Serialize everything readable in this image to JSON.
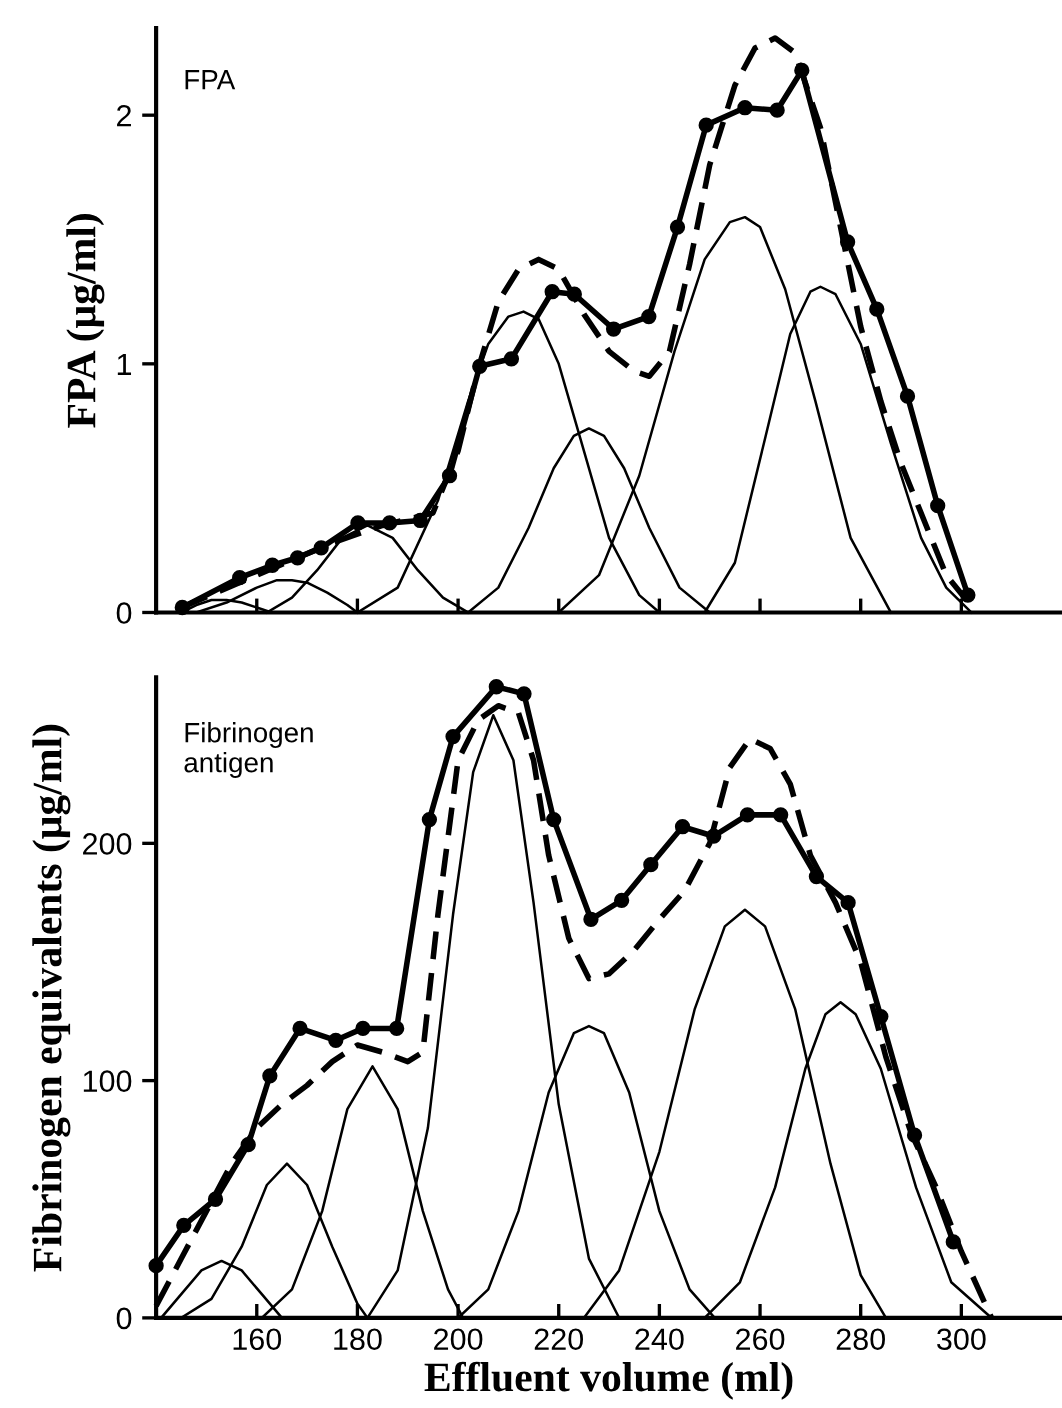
{
  "chart_data": [
    {
      "type": "line",
      "ylabel": "FPA (μg/ml)",
      "annotations": [
        "FPA"
      ],
      "xlim": [
        140,
        320
      ],
      "ylim": [
        0,
        2.35
      ],
      "xticks": [
        160,
        180,
        200,
        220,
        240,
        260,
        280,
        300
      ],
      "yticks": [
        0,
        1,
        2
      ],
      "tick_labels": "y",
      "grid": false,
      "legend": false,
      "series": [
        {
          "color": "#000000",
          "marker": "circle",
          "line_style": "solid",
          "x": [
            145.2,
            156.6,
            163.1,
            168.1,
            172.8,
            180.1,
            186.4,
            192.5,
            198.3,
            204.3,
            210.6,
            218.7,
            223.1,
            230.9,
            237.9,
            243.6,
            249.3,
            257.0,
            263.4,
            268.3,
            277.4,
            283.2,
            289.3,
            295.3,
            301.3
          ],
          "values": [
            0.02,
            0.14,
            0.19,
            0.22,
            0.26,
            0.36,
            0.36,
            0.37,
            0.55,
            0.99,
            1.02,
            1.29,
            1.28,
            1.14,
            1.19,
            1.55,
            1.96,
            2.03,
            2.02,
            2.18,
            1.49,
            1.22,
            0.87,
            0.43,
            0.07
          ]
        },
        {
          "color": "#000000",
          "marker": "none",
          "line_style": "dashed",
          "x": [
            145,
            160,
            175,
            185,
            195,
            200,
            204,
            208,
            212,
            216,
            220,
            225,
            230,
            235,
            238,
            242,
            246,
            250,
            255,
            259,
            263,
            267,
            272,
            276,
            280,
            284,
            288,
            293,
            297,
            301
          ],
          "values": [
            0.02,
            0.15,
            0.28,
            0.35,
            0.4,
            0.65,
            0.98,
            1.25,
            1.38,
            1.42,
            1.38,
            1.2,
            1.05,
            0.97,
            0.95,
            1.05,
            1.4,
            1.8,
            2.12,
            2.27,
            2.31,
            2.25,
            1.95,
            1.55,
            1.15,
            0.85,
            0.6,
            0.35,
            0.15,
            0.05
          ]
        },
        {
          "color": "#000000",
          "marker": "none",
          "line_style": "solid",
          "x": [
            145,
            148,
            151,
            154,
            157,
            160,
            163
          ],
          "values": [
            0.0,
            0.03,
            0.05,
            0.05,
            0.04,
            0.02,
            0.0
          ]
        },
        {
          "color": "#000000",
          "marker": "none",
          "line_style": "solid",
          "x": [
            148,
            154,
            160,
            164,
            167,
            170,
            174,
            178,
            180
          ],
          "values": [
            0.0,
            0.04,
            0.1,
            0.13,
            0.13,
            0.12,
            0.08,
            0.03,
            0.0
          ]
        },
        {
          "color": "#000000",
          "marker": "none",
          "line_style": "solid",
          "x": [
            162,
            167,
            172,
            177,
            182,
            187,
            192,
            197,
            202
          ],
          "values": [
            0.0,
            0.06,
            0.17,
            0.3,
            0.35,
            0.3,
            0.17,
            0.06,
            0.0
          ]
        },
        {
          "color": "#000000",
          "marker": "none",
          "line_style": "solid",
          "x": [
            180,
            188,
            196,
            202,
            206,
            210,
            213,
            216,
            220,
            224,
            230,
            236,
            240
          ],
          "values": [
            0.0,
            0.1,
            0.45,
            0.85,
            1.08,
            1.19,
            1.21,
            1.18,
            1.0,
            0.72,
            0.3,
            0.07,
            0.0
          ]
        },
        {
          "color": "#000000",
          "marker": "none",
          "line_style": "solid",
          "x": [
            202,
            208,
            214,
            219,
            223,
            226,
            229,
            233,
            238,
            244,
            250
          ],
          "values": [
            0.0,
            0.1,
            0.34,
            0.58,
            0.71,
            0.74,
            0.71,
            0.58,
            0.34,
            0.1,
            0.0
          ]
        },
        {
          "color": "#000000",
          "marker": "none",
          "line_style": "solid",
          "x": [
            220,
            228,
            236,
            243,
            249,
            254,
            257,
            260,
            265,
            271,
            278,
            286
          ],
          "values": [
            0.0,
            0.15,
            0.55,
            1.05,
            1.42,
            1.57,
            1.59,
            1.55,
            1.3,
            0.85,
            0.3,
            0.0
          ]
        },
        {
          "color": "#000000",
          "marker": "none",
          "line_style": "solid",
          "x": [
            249,
            255,
            261,
            266,
            270,
            272,
            275,
            280,
            286,
            292,
            297,
            302
          ],
          "values": [
            0.0,
            0.2,
            0.7,
            1.12,
            1.29,
            1.31,
            1.28,
            1.08,
            0.68,
            0.3,
            0.1,
            0.0
          ]
        }
      ]
    },
    {
      "type": "line",
      "xlabel": "Effluent volume (ml)",
      "ylabel": "Fibrinogen equivalents (μg/ml)",
      "annotations": [
        "Fibrinogen\nantigen"
      ],
      "xlim": [
        140,
        320
      ],
      "ylim": [
        0,
        270
      ],
      "xticks": [
        160,
        180,
        200,
        220,
        240,
        260,
        280,
        300
      ],
      "yticks": [
        0,
        100,
        200
      ],
      "grid": false,
      "legend": false,
      "series": [
        {
          "color": "#000000",
          "marker": "circle",
          "line_style": "solid",
          "x": [
            140,
            145.5,
            151.8,
            158.3,
            162.6,
            168.6,
            175.7,
            181.1,
            187.8,
            194.3,
            199.0,
            207.6,
            213.1,
            219.0,
            226.4,
            232.5,
            238.3,
            244.6,
            250.8,
            257.5,
            264.1,
            271.2,
            277.5,
            284.0,
            290.7,
            298.4
          ],
          "values": [
            22,
            39,
            50,
            73,
            102,
            122,
            117,
            122,
            122,
            210,
            245,
            266,
            263,
            210,
            168,
            176,
            191,
            207,
            203,
            212,
            212,
            186,
            175,
            127,
            77,
            32
          ]
        },
        {
          "color": "#000000",
          "marker": "none",
          "line_style": "dashed",
          "x": [
            140,
            145,
            150,
            155,
            160,
            165,
            170,
            175,
            180,
            185,
            190,
            193,
            196,
            200,
            204,
            208,
            212,
            215,
            218,
            222,
            226,
            230,
            235,
            240,
            245,
            250,
            254,
            258,
            262,
            266,
            270,
            275,
            280,
            285,
            290,
            295,
            300,
            306
          ],
          "values": [
            5,
            25,
            45,
            65,
            80,
            90,
            98,
            108,
            115,
            112,
            108,
            112,
            170,
            235,
            252,
            258,
            255,
            235,
            195,
            160,
            143,
            145,
            155,
            168,
            180,
            200,
            232,
            244,
            240,
            225,
            195,
            175,
            150,
            110,
            78,
            55,
            28,
            0
          ]
        },
        {
          "color": "#000000",
          "marker": "none",
          "line_style": "solid",
          "x": [
            141,
            145,
            149,
            153,
            157,
            161,
            165
          ],
          "values": [
            0,
            10,
            20,
            24,
            20,
            10,
            0
          ]
        },
        {
          "color": "#000000",
          "marker": "none",
          "line_style": "solid",
          "x": [
            145,
            151,
            157,
            162,
            166,
            170,
            175,
            180,
            182
          ],
          "values": [
            0,
            8,
            30,
            56,
            65,
            56,
            30,
            6,
            0
          ]
        },
        {
          "color": "#000000",
          "marker": "none",
          "line_style": "solid",
          "x": [
            161,
            167,
            173,
            178,
            183,
            188,
            193,
            198,
            201
          ],
          "values": [
            0,
            12,
            45,
            88,
            106,
            88,
            45,
            12,
            0
          ]
        },
        {
          "color": "#000000",
          "marker": "none",
          "line_style": "solid",
          "x": [
            182,
            188,
            194,
            199,
            203,
            207,
            211,
            215,
            220,
            226,
            232
          ],
          "values": [
            0,
            20,
            80,
            170,
            230,
            254,
            235,
            175,
            90,
            25,
            0
          ]
        },
        {
          "color": "#000000",
          "marker": "none",
          "line_style": "solid",
          "x": [
            200,
            206,
            212,
            218,
            223,
            226,
            229,
            234,
            240,
            246,
            251
          ],
          "values": [
            0,
            12,
            45,
            95,
            120,
            123,
            120,
            95,
            45,
            12,
            0
          ]
        },
        {
          "color": "#000000",
          "marker": "none",
          "line_style": "solid",
          "x": [
            225,
            232,
            240,
            247,
            253,
            257,
            261,
            267,
            274,
            280,
            285
          ],
          "values": [
            0,
            20,
            70,
            130,
            165,
            172,
            165,
            130,
            65,
            18,
            0
          ]
        },
        {
          "color": "#000000",
          "marker": "none",
          "line_style": "solid",
          "x": [
            249,
            256,
            263,
            269,
            273,
            276,
            279,
            284,
            291,
            298,
            306
          ],
          "values": [
            0,
            15,
            55,
            105,
            128,
            133,
            128,
            105,
            55,
            15,
            0
          ]
        }
      ]
    }
  ]
}
